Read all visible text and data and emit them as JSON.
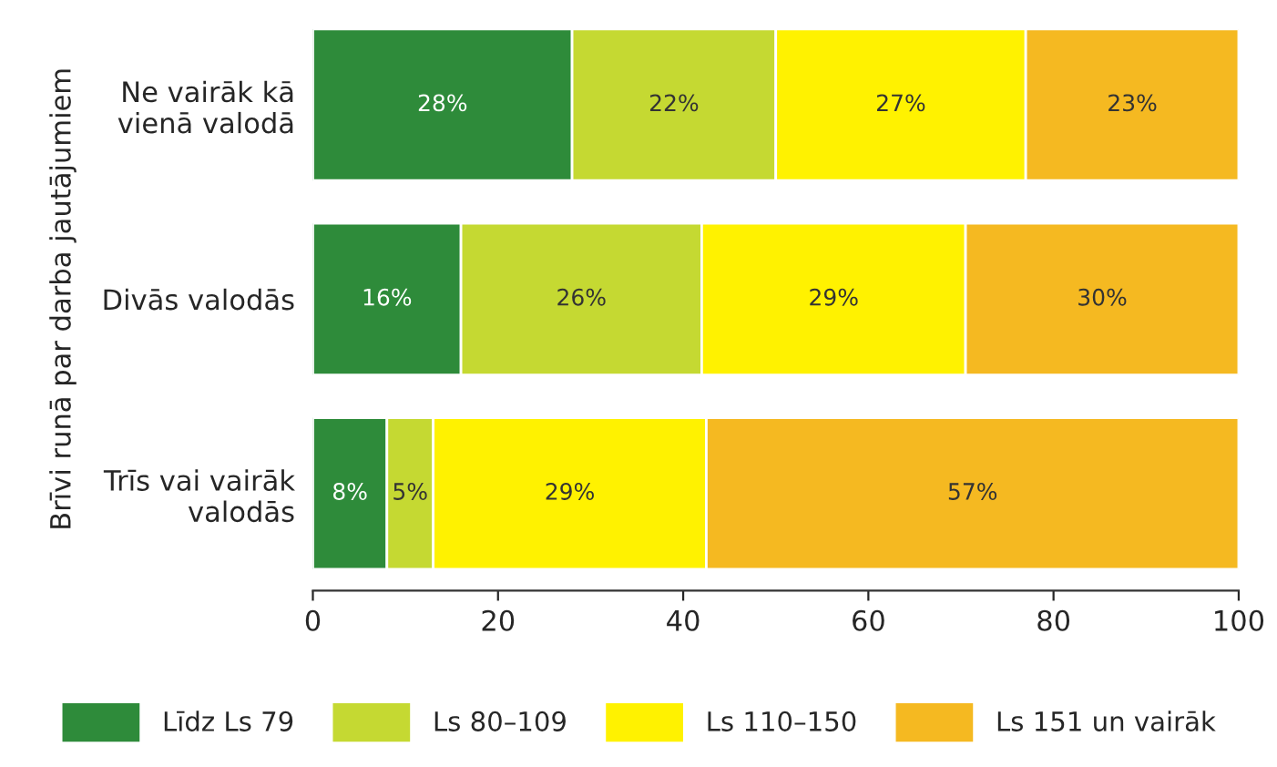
{
  "chart_data": {
    "type": "bar",
    "orientation": "horizontal",
    "stacked": true,
    "ylabel": "Brīvi runā par darba jautājumiem",
    "categories": [
      "Ne vairāk kā\nvienā valodā",
      "Divās valodās",
      "Trīs vai vairāk\nvalodās"
    ],
    "series": [
      {
        "name": "Līdz Ls 79",
        "color": "#2e8b3a",
        "values": [
          28,
          16,
          8
        ],
        "value_labels": [
          "28%",
          "16%",
          "8%"
        ]
      },
      {
        "name": "Ls 80–109",
        "color": "#c5d932",
        "values": [
          22,
          26,
          5
        ],
        "value_labels": [
          "22%",
          "26%",
          "5%"
        ]
      },
      {
        "name": "Ls 110–150",
        "color": "#fff200",
        "values": [
          27,
          28.5,
          29.5
        ],
        "value_labels": [
          "27%",
          "29%",
          "29%"
        ]
      },
      {
        "name": "Ls 151 un vairāk",
        "color": "#f5b921",
        "values": [
          23,
          29.5,
          57.5
        ],
        "value_labels": [
          "23%",
          "30%",
          "57%"
        ]
      }
    ],
    "xlim": [
      0,
      100
    ],
    "xticks": [
      0,
      20,
      40,
      60,
      80,
      100
    ],
    "grid": false,
    "legend": "bottom"
  }
}
